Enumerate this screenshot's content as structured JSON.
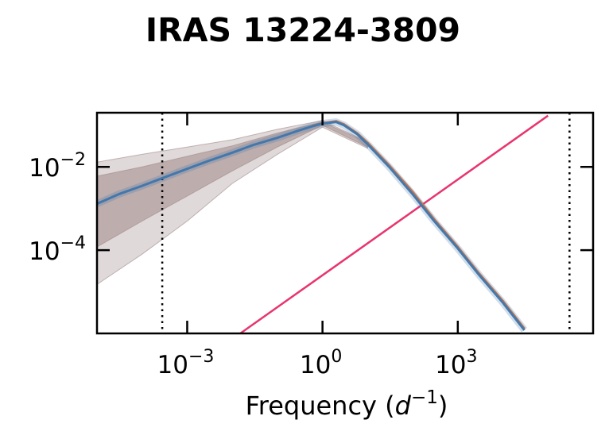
{
  "chart_data": {
    "type": "line",
    "title": "IRAS 13224-3809",
    "xlabel": "Frequency ($d^{-1}$)",
    "ylabel": "",
    "xscale": "log",
    "yscale": "log",
    "xlim": [
      1e-05,
      1000000.0
    ],
    "ylim": [
      1e-06,
      0.2
    ],
    "grid": false,
    "x_ticks": [
      {
        "value": 0.001,
        "mantissa": "10",
        "exponent": "−3"
      },
      {
        "value": 1,
        "mantissa": "10",
        "exponent": "0"
      },
      {
        "value": 1000,
        "mantissa": "10",
        "exponent": "3"
      }
    ],
    "y_ticks": [
      {
        "value": 0.01,
        "mantissa": "10",
        "exponent": "−2"
      },
      {
        "value": 0.0001,
        "mantissa": "10",
        "exponent": "−4"
      }
    ],
    "vlines": [
      0.00028,
      300000
    ],
    "colors": {
      "median": "#4477aa",
      "model": "#ee7733",
      "noise": "#e8356e",
      "band": "#a08888",
      "vline": "#000000"
    },
    "series": [
      {
        "role": "median",
        "x": [
          1e-05,
          3e-05,
          0.0001,
          0.0003,
          0.001,
          0.003,
          0.01,
          0.03,
          0.1,
          0.3,
          0.6,
          1,
          2,
          3,
          6,
          10,
          30,
          100,
          300,
          1000,
          3000,
          10000,
          30000
        ],
        "y": [
          0.0013,
          0.0022,
          0.0035,
          0.0055,
          0.009,
          0.014,
          0.022,
          0.034,
          0.05,
          0.075,
          0.095,
          0.11,
          0.12,
          0.1,
          0.06,
          0.035,
          0.01,
          0.0022,
          0.0005,
          0.00011,
          2.5e-05,
          5.5e-06,
          1.2e-06
        ]
      },
      {
        "role": "model",
        "x": [
          0.6,
          1,
          2,
          3,
          6,
          10,
          30,
          100,
          300,
          1000,
          3000,
          10000,
          30000
        ],
        "y": [
          0.098,
          0.112,
          0.125,
          0.105,
          0.063,
          0.038,
          0.011,
          0.0025,
          0.00055,
          0.00012,
          2.7e-05,
          6e-06,
          1.3e-06
        ]
      },
      {
        "role": "noise",
        "x": [
          0.015,
          100000
        ],
        "y": [
          1e-06,
          0.17
        ]
      }
    ],
    "bands": [
      {
        "role": "inner",
        "x": [
          1e-05,
          0.0001,
          0.001,
          0.01,
          0.1,
          1,
          10
        ],
        "low": [
          0.00012,
          0.0005,
          0.002,
          0.008,
          0.03,
          0.1,
          0.03
        ],
        "high": [
          0.006,
          0.01,
          0.018,
          0.032,
          0.065,
          0.12,
          0.038
        ]
      },
      {
        "role": "outer",
        "x": [
          1e-05,
          0.0001,
          0.001,
          0.01,
          0.1,
          1,
          10
        ],
        "low": [
          1.5e-05,
          8e-05,
          0.0005,
          0.004,
          0.02,
          0.09,
          0.028
        ],
        "high": [
          0.013,
          0.02,
          0.03,
          0.045,
          0.08,
          0.13,
          0.04
        ]
      }
    ]
  }
}
